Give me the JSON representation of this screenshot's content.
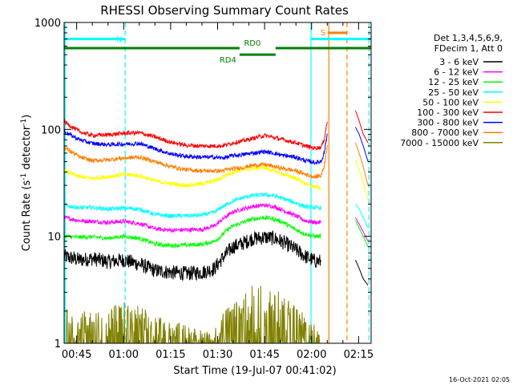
{
  "chart_data": {
    "type": "line",
    "title": "RHESSI Observing Summary Count Rates",
    "xlabel": "Start Time (19-Jul-07 00:41:02)",
    "ylabel_main": "Count Rate (s",
    "ylabel_sup1": "-1",
    "ylabel_mid": " detector",
    "ylabel_sup2": "-1",
    "ylabel_end": ")",
    "yscale": "log",
    "ylim": [
      1,
      1000
    ],
    "xlim_minutes": [
      41.0,
      139.0
    ],
    "y_ticks": [
      {
        "value": 1,
        "label": "1"
      },
      {
        "value": 10,
        "label": "10"
      },
      {
        "value": 100,
        "label": "100"
      },
      {
        "value": 1000,
        "label": "1000"
      }
    ],
    "x_ticks": [
      {
        "value": 45,
        "label": "00:45"
      },
      {
        "value": 60,
        "label": "01:00"
      },
      {
        "value": 75,
        "label": "01:15"
      },
      {
        "value": 90,
        "label": "01:30"
      },
      {
        "value": 105,
        "label": "01:45"
      },
      {
        "value": 120,
        "label": "02:00"
      },
      {
        "value": 135,
        "label": "02:15"
      }
    ],
    "legend_position": "right",
    "legend_header": [
      "Det 1,3,4,5,6,9,",
      "FDecim 1, Att 0"
    ],
    "series": [
      {
        "name": "3 - 6 keV",
        "color": "#000000",
        "points": [
          [
            41,
            6.5
          ],
          [
            46,
            6
          ],
          [
            50,
            6.2
          ],
          [
            55,
            5.8
          ],
          [
            60,
            6
          ],
          [
            65,
            5.5
          ],
          [
            70,
            4.8
          ],
          [
            75,
            4.6
          ],
          [
            80,
            4.5
          ],
          [
            85,
            4.6
          ],
          [
            89,
            5
          ],
          [
            91,
            6
          ],
          [
            93,
            7
          ],
          [
            95,
            8
          ],
          [
            98,
            8.6
          ],
          [
            101,
            9.5
          ],
          [
            105,
            9.8
          ],
          [
            108,
            9.6
          ],
          [
            111,
            8.8
          ],
          [
            115,
            7.5
          ],
          [
            118,
            6.5
          ],
          [
            121,
            5.9
          ],
          [
            123,
            5.8
          ]
        ]
      },
      {
        "name": "6 - 12 keV",
        "color": "#ff00ff",
        "points": [
          [
            41,
            15
          ],
          [
            46,
            14
          ],
          [
            50,
            13.8
          ],
          [
            55,
            13.5
          ],
          [
            60,
            13.8
          ],
          [
            65,
            13.2
          ],
          [
            70,
            11.8
          ],
          [
            75,
            11.4
          ],
          [
            80,
            11.5
          ],
          [
            85,
            11.6
          ],
          [
            89,
            12.5
          ],
          [
            91,
            14
          ],
          [
            93,
            15.5
          ],
          [
            95,
            17
          ],
          [
            98,
            18
          ],
          [
            101,
            19
          ],
          [
            105,
            19.5
          ],
          [
            108,
            19
          ],
          [
            111,
            17.5
          ],
          [
            115,
            15.5
          ],
          [
            118,
            14
          ],
          [
            121,
            13.5
          ],
          [
            123,
            13.5
          ]
        ]
      },
      {
        "name": "12 - 25 keV",
        "color": "#00ff00",
        "points": [
          [
            41,
            10
          ],
          [
            46,
            9.8
          ],
          [
            50,
            9.9
          ],
          [
            55,
            9.6
          ],
          [
            60,
            10
          ],
          [
            65,
            9.6
          ],
          [
            70,
            8.5
          ],
          [
            75,
            8.2
          ],
          [
            80,
            8.3
          ],
          [
            85,
            8.4
          ],
          [
            89,
            9
          ],
          [
            91,
            10
          ],
          [
            93,
            11.5
          ],
          [
            95,
            12.5
          ],
          [
            98,
            13.5
          ],
          [
            101,
            14.5
          ],
          [
            105,
            15
          ],
          [
            108,
            14.5
          ],
          [
            111,
            13.5
          ],
          [
            115,
            11.5
          ],
          [
            118,
            10.5
          ],
          [
            121,
            10
          ],
          [
            123,
            10
          ]
        ]
      },
      {
        "name": "25 - 50 keV",
        "color": "#00ffff",
        "points": [
          [
            41,
            19.5
          ],
          [
            46,
            18.5
          ],
          [
            50,
            18.6
          ],
          [
            55,
            18
          ],
          [
            60,
            18.4
          ],
          [
            65,
            18
          ],
          [
            70,
            16
          ],
          [
            75,
            15.5
          ],
          [
            80,
            15.6
          ],
          [
            85,
            15.8
          ],
          [
            89,
            16.8
          ],
          [
            91,
            18.5
          ],
          [
            93,
            20
          ],
          [
            95,
            21.5
          ],
          [
            98,
            23
          ],
          [
            101,
            24
          ],
          [
            105,
            24.5
          ],
          [
            108,
            24
          ],
          [
            111,
            22.5
          ],
          [
            115,
            20.5
          ],
          [
            118,
            19
          ],
          [
            121,
            18.5
          ],
          [
            123,
            18.5
          ]
        ]
      },
      {
        "name": "50 - 100 keV",
        "color": "#ffff00",
        "points": [
          [
            41,
            41
          ],
          [
            46,
            36
          ],
          [
            50,
            35
          ],
          [
            55,
            36
          ],
          [
            60,
            38
          ],
          [
            65,
            37
          ],
          [
            70,
            33
          ],
          [
            75,
            31
          ],
          [
            80,
            30
          ],
          [
            85,
            31
          ],
          [
            89,
            33
          ],
          [
            91,
            35
          ],
          [
            93,
            38
          ],
          [
            95,
            40
          ],
          [
            98,
            42
          ],
          [
            101,
            43
          ],
          [
            105,
            44
          ],
          [
            108,
            41
          ],
          [
            111,
            38
          ],
          [
            115,
            35
          ],
          [
            118,
            31
          ],
          [
            121,
            29
          ],
          [
            123,
            28
          ]
        ]
      },
      {
        "name": "100 - 300 keV",
        "color": "#ff0000",
        "points": [
          [
            41,
            118
          ],
          [
            46,
            95
          ],
          [
            50,
            88
          ],
          [
            55,
            89
          ],
          [
            60,
            92
          ],
          [
            65,
            93
          ],
          [
            70,
            85
          ],
          [
            75,
            76
          ],
          [
            80,
            71
          ],
          [
            85,
            70
          ],
          [
            89,
            70
          ],
          [
            91,
            70
          ],
          [
            93,
            72
          ],
          [
            95,
            75
          ],
          [
            98,
            78
          ],
          [
            101,
            82
          ],
          [
            105,
            88
          ],
          [
            108,
            84
          ],
          [
            111,
            80
          ],
          [
            115,
            75
          ],
          [
            118,
            70
          ],
          [
            121,
            67
          ],
          [
            123,
            68
          ],
          [
            124,
            80
          ],
          [
            125,
            120
          ]
        ]
      },
      {
        "name": "300 - 800 keV",
        "color": "#0000ff",
        "points": [
          [
            41,
            95
          ],
          [
            46,
            80
          ],
          [
            50,
            74
          ],
          [
            55,
            72
          ],
          [
            60,
            73
          ],
          [
            65,
            74
          ],
          [
            70,
            66
          ],
          [
            75,
            59
          ],
          [
            80,
            56
          ],
          [
            85,
            55
          ],
          [
            89,
            55
          ],
          [
            91,
            54
          ],
          [
            93,
            55
          ],
          [
            95,
            57
          ],
          [
            98,
            58
          ],
          [
            101,
            60
          ],
          [
            105,
            62
          ],
          [
            108,
            60
          ],
          [
            111,
            57
          ],
          [
            115,
            55
          ],
          [
            118,
            51
          ],
          [
            121,
            49
          ],
          [
            123,
            50
          ],
          [
            124,
            60
          ],
          [
            125,
            90
          ]
        ]
      },
      {
        "name": "800 - 7000 keV",
        "color": "#ff8000",
        "points": [
          [
            41,
            68
          ],
          [
            46,
            55
          ],
          [
            50,
            51
          ],
          [
            55,
            52
          ],
          [
            60,
            54
          ],
          [
            65,
            55
          ],
          [
            70,
            50
          ],
          [
            75,
            45
          ],
          [
            80,
            42
          ],
          [
            85,
            41
          ],
          [
            89,
            41
          ],
          [
            91,
            41
          ],
          [
            93,
            42
          ],
          [
            95,
            43
          ],
          [
            98,
            44
          ],
          [
            101,
            46
          ],
          [
            105,
            47
          ],
          [
            108,
            45
          ],
          [
            111,
            43
          ],
          [
            115,
            41
          ],
          [
            118,
            38
          ],
          [
            121,
            36
          ],
          [
            123,
            37
          ],
          [
            124,
            45
          ],
          [
            125,
            70
          ]
        ]
      },
      {
        "name": "7000 - 15000 keV",
        "color": "#808000",
        "points": [
          [
            41,
            1.7
          ],
          [
            50,
            1.6
          ],
          [
            55,
            1.8
          ],
          [
            60,
            1.9
          ],
          [
            65,
            1.8
          ],
          [
            70,
            1.5
          ],
          [
            75,
            1.4
          ],
          [
            80,
            1.3
          ],
          [
            85,
            1.2
          ],
          [
            89,
            1.2
          ],
          [
            91,
            1.6
          ],
          [
            95,
            2
          ],
          [
            98,
            2.2
          ],
          [
            101,
            2.6
          ],
          [
            105,
            2.8
          ],
          [
            108,
            2.4
          ],
          [
            111,
            2.2
          ],
          [
            115,
            1.8
          ],
          [
            118,
            1.5
          ],
          [
            121,
            1.3
          ],
          [
            123,
            1.2
          ]
        ]
      }
    ],
    "post_flare_series": [
      {
        "color": "#ff0000",
        "points": [
          [
            134.0,
            150
          ],
          [
            135.2,
            120
          ],
          [
            136.5,
            90
          ],
          [
            138.0,
            75
          ]
        ]
      },
      {
        "color": "#0000ff",
        "points": [
          [
            134.0,
            105
          ],
          [
            135.2,
            90
          ],
          [
            136.5,
            70
          ],
          [
            138.0,
            50
          ]
        ]
      },
      {
        "color": "#ff8000",
        "points": [
          [
            134.0,
            75
          ],
          [
            135.2,
            60
          ],
          [
            136.5,
            45
          ],
          [
            138.0,
            30
          ]
        ]
      },
      {
        "color": "#ffff00",
        "points": [
          [
            134.0,
            52
          ],
          [
            135.2,
            42
          ],
          [
            136.5,
            32
          ],
          [
            138.0,
            22
          ]
        ]
      },
      {
        "color": "#00ffff",
        "points": [
          [
            134.0,
            20
          ],
          [
            135.2,
            18
          ],
          [
            136.5,
            15
          ],
          [
            138.0,
            12
          ]
        ]
      },
      {
        "color": "#00ff00",
        "points": [
          [
            134.0,
            14
          ],
          [
            135.2,
            12
          ],
          [
            136.5,
            10
          ],
          [
            138.0,
            8
          ]
        ]
      },
      {
        "color": "#ff00ff",
        "points": [
          [
            134.0,
            15
          ],
          [
            135.2,
            13
          ],
          [
            136.5,
            11
          ],
          [
            138.0,
            9
          ]
        ]
      },
      {
        "color": "#000000",
        "points": [
          [
            134.0,
            6
          ],
          [
            135.2,
            5
          ],
          [
            136.5,
            4
          ],
          [
            138.0,
            3.5
          ]
        ]
      }
    ],
    "annotations": {
      "night_bars": [
        {
          "label": "N",
          "start": 41.0,
          "end": 60.5,
          "color": "#00ffff",
          "y_level": 700
        },
        {
          "label": "",
          "start": 119.8,
          "end": 139.0,
          "color": "#00ffff",
          "y_level": 700
        }
      ],
      "rd_bars": [
        {
          "label": "RD0",
          "start": 41.0,
          "end": 97.0,
          "color": "#008000",
          "y_level": 575
        },
        {
          "label": "RD4",
          "start": 97.0,
          "end": 108.5,
          "color": "#008000",
          "y_level": 500
        },
        {
          "label": "",
          "start": 108.5,
          "end": 139.0,
          "color": "#008000",
          "y_level": 575
        }
      ],
      "saa_bar": {
        "label": "S",
        "start": 125.2,
        "end": 131.3,
        "color": "#ff8000",
        "y_level": 800
      },
      "vlines": [
        {
          "x": 41.3,
          "color": "#00ffff",
          "style": "solid"
        },
        {
          "x": 60.5,
          "color": "#00ffff",
          "style": "dashed"
        },
        {
          "x": 119.8,
          "color": "#00ffff",
          "style": "solid"
        },
        {
          "x": 138.3,
          "color": "#00ffff",
          "style": "dashed"
        },
        {
          "x": 125.5,
          "color": "#ff8000",
          "style": "solid"
        },
        {
          "x": 131.3,
          "color": "#ff8000",
          "style": "dashed"
        }
      ]
    },
    "timestamp": "16-Oct-2021 02:05"
  }
}
